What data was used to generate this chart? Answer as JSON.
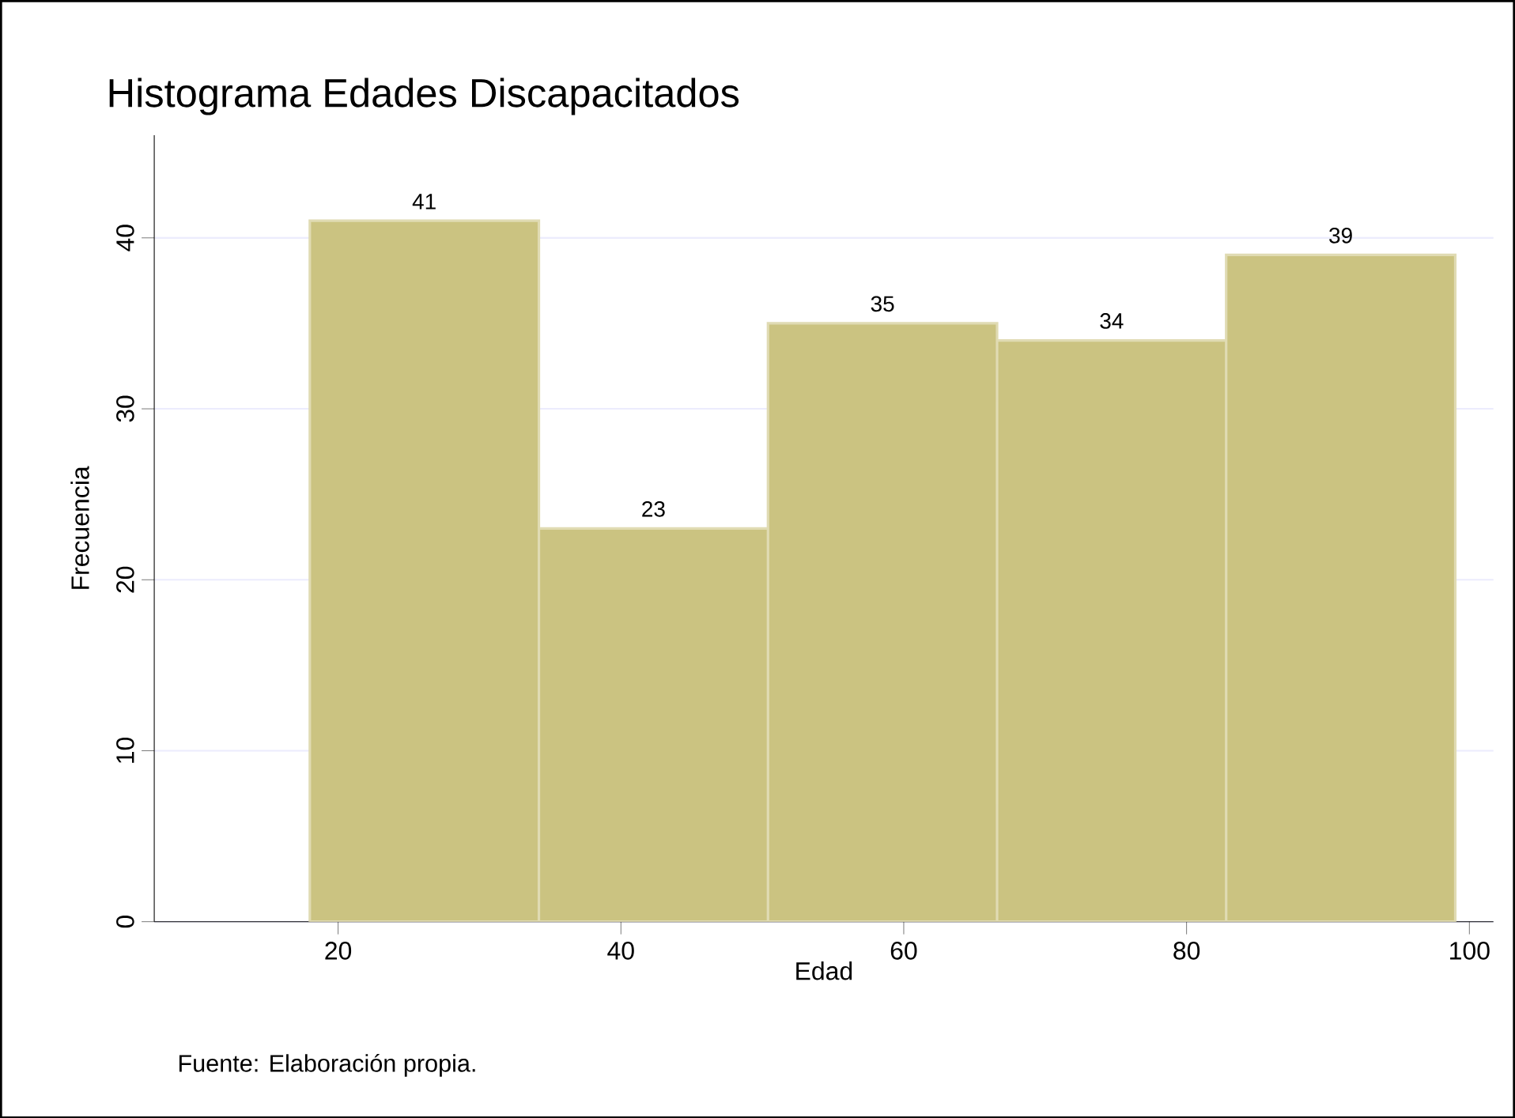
{
  "chart_data": {
    "type": "histogram",
    "title": "Histograma Edades Discapacitados",
    "xlabel": "Edad",
    "ylabel": "Frecuencia",
    "annotations": [
      "Fuente: Elaboración propia."
    ],
    "bins": [
      18,
      34.2,
      50.4,
      66.6,
      82.8,
      99
    ],
    "values": [
      41,
      23,
      35,
      34,
      39
    ],
    "color": "#cbc381",
    "xlim": [
      7,
      101.7
    ],
    "xticks": [
      20,
      40,
      60,
      80,
      100
    ],
    "ylim": [
      0,
      46
    ],
    "yticks": [
      0,
      10,
      20,
      30,
      40
    ],
    "grid": "y",
    "data_labels": true
  }
}
